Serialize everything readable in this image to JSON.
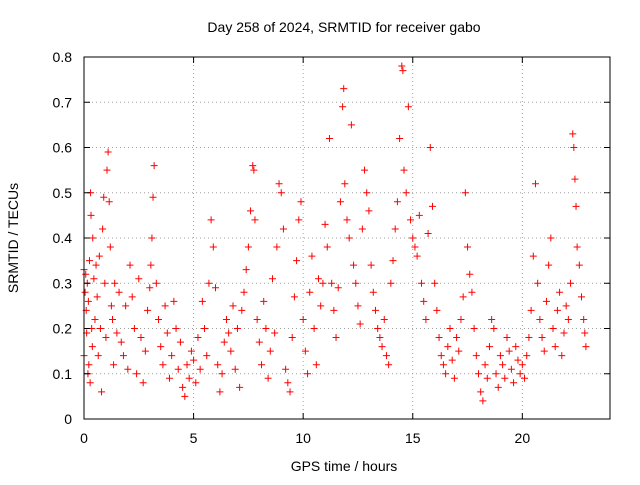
{
  "chart_data": {
    "type": "scatter",
    "title": "Day 258 of 2024, SRMTID for receiver gabo",
    "xlabel": "GPS time / hours",
    "ylabel": "SRMTID / TECUs",
    "xlim": [
      0,
      24
    ],
    "ylim": [
      0,
      0.8
    ],
    "grid": true,
    "marker": "plus",
    "color": "#ff0000",
    "xticks": [
      0,
      5,
      10,
      15,
      20
    ],
    "yticks": [
      0,
      0.1,
      0.2,
      0.3,
      0.4,
      0.5,
      0.6,
      0.7,
      0.8
    ],
    "xtick_labels": [
      "0",
      "5",
      "10",
      "15",
      "20"
    ],
    "ytick_labels": [
      "0",
      "0.1",
      "0.2",
      "0.3",
      "0.4",
      "0.5",
      "0.6",
      "0.7",
      "0.8"
    ],
    "series": [
      {
        "name": "SRMTID",
        "points": [
          [
            0.0,
            0.33
          ],
          [
            0.0,
            0.14
          ],
          [
            0.05,
            0.28
          ],
          [
            0.08,
            0.32
          ],
          [
            0.1,
            0.24
          ],
          [
            0.12,
            0.19
          ],
          [
            0.15,
            0.3
          ],
          [
            0.18,
            0.1
          ],
          [
            0.2,
            0.26
          ],
          [
            0.22,
            0.12
          ],
          [
            0.25,
            0.35
          ],
          [
            0.28,
            0.08
          ],
          [
            0.3,
            0.5
          ],
          [
            0.32,
            0.45
          ],
          [
            0.35,
            0.2
          ],
          [
            0.38,
            0.16
          ],
          [
            0.4,
            0.4
          ],
          [
            0.45,
            0.31
          ],
          [
            0.5,
            0.22
          ],
          [
            0.55,
            0.34
          ],
          [
            0.6,
            0.27
          ],
          [
            0.65,
            0.14
          ],
          [
            0.7,
            0.36
          ],
          [
            0.75,
            0.2
          ],
          [
            0.8,
            0.06
          ],
          [
            0.85,
            0.42
          ],
          [
            0.9,
            0.49
          ],
          [
            0.95,
            0.3
          ],
          [
            1.0,
            0.18
          ],
          [
            1.05,
            0.55
          ],
          [
            1.1,
            0.59
          ],
          [
            1.15,
            0.48
          ],
          [
            1.2,
            0.38
          ],
          [
            1.25,
            0.25
          ],
          [
            1.3,
            0.22
          ],
          [
            1.35,
            0.12
          ],
          [
            1.4,
            0.3
          ],
          [
            1.5,
            0.19
          ],
          [
            1.6,
            0.28
          ],
          [
            1.7,
            0.17
          ],
          [
            1.8,
            0.14
          ],
          [
            1.9,
            0.25
          ],
          [
            2.0,
            0.11
          ],
          [
            2.1,
            0.34
          ],
          [
            2.2,
            0.27
          ],
          [
            2.3,
            0.2
          ],
          [
            2.4,
            0.1
          ],
          [
            2.5,
            0.31
          ],
          [
            2.6,
            0.18
          ],
          [
            2.7,
            0.08
          ],
          [
            2.8,
            0.15
          ],
          [
            2.9,
            0.24
          ],
          [
            3.0,
            0.29
          ],
          [
            3.05,
            0.34
          ],
          [
            3.1,
            0.4
          ],
          [
            3.15,
            0.49
          ],
          [
            3.2,
            0.56
          ],
          [
            3.3,
            0.3
          ],
          [
            3.4,
            0.22
          ],
          [
            3.5,
            0.16
          ],
          [
            3.6,
            0.12
          ],
          [
            3.7,
            0.25
          ],
          [
            3.8,
            0.19
          ],
          [
            3.9,
            0.09
          ],
          [
            4.0,
            0.14
          ],
          [
            4.1,
            0.26
          ],
          [
            4.2,
            0.2
          ],
          [
            4.3,
            0.11
          ],
          [
            4.4,
            0.17
          ],
          [
            4.5,
            0.07
          ],
          [
            4.6,
            0.05
          ],
          [
            4.7,
            0.12
          ],
          [
            4.8,
            0.09
          ],
          [
            4.9,
            0.15
          ],
          [
            5.0,
            0.13
          ],
          [
            5.1,
            0.08
          ],
          [
            5.2,
            0.18
          ],
          [
            5.3,
            0.11
          ],
          [
            5.4,
            0.26
          ],
          [
            5.5,
            0.2
          ],
          [
            5.6,
            0.14
          ],
          [
            5.7,
            0.3
          ],
          [
            5.8,
            0.44
          ],
          [
            5.9,
            0.38
          ],
          [
            6.0,
            0.29
          ],
          [
            6.1,
            0.12
          ],
          [
            6.2,
            0.06
          ],
          [
            6.3,
            0.1
          ],
          [
            6.4,
            0.17
          ],
          [
            6.5,
            0.22
          ],
          [
            6.6,
            0.19
          ],
          [
            6.7,
            0.15
          ],
          [
            6.8,
            0.25
          ],
          [
            6.9,
            0.11
          ],
          [
            7.0,
            0.2
          ],
          [
            7.1,
            0.07
          ],
          [
            7.2,
            0.24
          ],
          [
            7.3,
            0.28
          ],
          [
            7.4,
            0.33
          ],
          [
            7.5,
            0.38
          ],
          [
            7.6,
            0.46
          ],
          [
            7.7,
            0.56
          ],
          [
            7.75,
            0.55
          ],
          [
            7.8,
            0.44
          ],
          [
            7.9,
            0.22
          ],
          [
            8.0,
            0.17
          ],
          [
            8.1,
            0.12
          ],
          [
            8.2,
            0.26
          ],
          [
            8.3,
            0.2
          ],
          [
            8.4,
            0.09
          ],
          [
            8.5,
            0.15
          ],
          [
            8.6,
            0.31
          ],
          [
            8.7,
            0.19
          ],
          [
            8.8,
            0.38
          ],
          [
            8.9,
            0.52
          ],
          [
            9.0,
            0.5
          ],
          [
            9.1,
            0.42
          ],
          [
            9.2,
            0.11
          ],
          [
            9.3,
            0.08
          ],
          [
            9.4,
            0.06
          ],
          [
            9.5,
            0.18
          ],
          [
            9.6,
            0.27
          ],
          [
            9.7,
            0.35
          ],
          [
            9.8,
            0.44
          ],
          [
            9.9,
            0.48
          ],
          [
            10.0,
            0.22
          ],
          [
            10.1,
            0.15
          ],
          [
            10.2,
            0.1
          ],
          [
            10.3,
            0.28
          ],
          [
            10.4,
            0.36
          ],
          [
            10.5,
            0.2
          ],
          [
            10.6,
            0.12
          ],
          [
            10.7,
            0.31
          ],
          [
            10.8,
            0.25
          ],
          [
            10.9,
            0.3
          ],
          [
            11.0,
            0.43
          ],
          [
            11.1,
            0.38
          ],
          [
            11.2,
            0.62
          ],
          [
            11.3,
            0.3
          ],
          [
            11.4,
            0.24
          ],
          [
            11.5,
            0.18
          ],
          [
            11.6,
            0.29
          ],
          [
            11.7,
            0.48
          ],
          [
            11.8,
            0.69
          ],
          [
            11.85,
            0.73
          ],
          [
            11.9,
            0.52
          ],
          [
            12.0,
            0.44
          ],
          [
            12.1,
            0.4
          ],
          [
            12.2,
            0.65
          ],
          [
            12.3,
            0.34
          ],
          [
            12.4,
            0.3
          ],
          [
            12.5,
            0.25
          ],
          [
            12.6,
            0.21
          ],
          [
            12.7,
            0.42
          ],
          [
            12.8,
            0.55
          ],
          [
            12.9,
            0.5
          ],
          [
            13.0,
            0.46
          ],
          [
            13.1,
            0.34
          ],
          [
            13.2,
            0.28
          ],
          [
            13.3,
            0.24
          ],
          [
            13.4,
            0.2
          ],
          [
            13.5,
            0.18
          ],
          [
            13.6,
            0.16
          ],
          [
            13.7,
            0.22
          ],
          [
            13.8,
            0.14
          ],
          [
            13.9,
            0.12
          ],
          [
            14.0,
            0.3
          ],
          [
            14.1,
            0.35
          ],
          [
            14.2,
            0.42
          ],
          [
            14.3,
            0.48
          ],
          [
            14.4,
            0.62
          ],
          [
            14.5,
            0.78
          ],
          [
            14.55,
            0.77
          ],
          [
            14.6,
            0.55
          ],
          [
            14.7,
            0.5
          ],
          [
            14.8,
            0.69
          ],
          [
            14.9,
            0.44
          ],
          [
            15.0,
            0.4
          ],
          [
            15.1,
            0.38
          ],
          [
            15.2,
            0.36
          ],
          [
            15.3,
            0.45
          ],
          [
            15.4,
            0.3
          ],
          [
            15.5,
            0.26
          ],
          [
            15.6,
            0.22
          ],
          [
            15.7,
            0.41
          ],
          [
            15.8,
            0.6
          ],
          [
            15.9,
            0.47
          ],
          [
            16.0,
            0.3
          ],
          [
            16.1,
            0.24
          ],
          [
            16.2,
            0.18
          ],
          [
            16.3,
            0.14
          ],
          [
            16.4,
            0.12
          ],
          [
            16.5,
            0.1
          ],
          [
            16.6,
            0.16
          ],
          [
            16.7,
            0.2
          ],
          [
            16.8,
            0.13
          ],
          [
            16.9,
            0.09
          ],
          [
            17.0,
            0.18
          ],
          [
            17.1,
            0.15
          ],
          [
            17.2,
            0.22
          ],
          [
            17.3,
            0.27
          ],
          [
            17.4,
            0.5
          ],
          [
            17.5,
            0.38
          ],
          [
            17.6,
            0.32
          ],
          [
            17.7,
            0.28
          ],
          [
            17.8,
            0.2
          ],
          [
            17.9,
            0.14
          ],
          [
            18.0,
            0.1
          ],
          [
            18.1,
            0.06
          ],
          [
            18.2,
            0.04
          ],
          [
            18.3,
            0.12
          ],
          [
            18.4,
            0.09
          ],
          [
            18.5,
            0.16
          ],
          [
            18.6,
            0.22
          ],
          [
            18.7,
            0.2
          ],
          [
            18.8,
            0.1
          ],
          [
            18.9,
            0.07
          ],
          [
            19.0,
            0.14
          ],
          [
            19.1,
            0.12
          ],
          [
            19.2,
            0.09
          ],
          [
            19.3,
            0.18
          ],
          [
            19.4,
            0.15
          ],
          [
            19.5,
            0.11
          ],
          [
            19.6,
            0.08
          ],
          [
            19.7,
            0.16
          ],
          [
            19.8,
            0.13
          ],
          [
            19.9,
            0.1
          ],
          [
            20.0,
            0.12
          ],
          [
            20.1,
            0.09
          ],
          [
            20.2,
            0.14
          ],
          [
            20.3,
            0.18
          ],
          [
            20.4,
            0.24
          ],
          [
            20.5,
            0.36
          ],
          [
            20.6,
            0.52
          ],
          [
            20.7,
            0.3
          ],
          [
            20.8,
            0.22
          ],
          [
            20.9,
            0.18
          ],
          [
            21.0,
            0.15
          ],
          [
            21.1,
            0.26
          ],
          [
            21.2,
            0.34
          ],
          [
            21.3,
            0.4
          ],
          [
            21.4,
            0.2
          ],
          [
            21.5,
            0.16
          ],
          [
            21.6,
            0.24
          ],
          [
            21.7,
            0.28
          ],
          [
            21.8,
            0.14
          ],
          [
            21.9,
            0.19
          ],
          [
            22.0,
            0.25
          ],
          [
            22.1,
            0.22
          ],
          [
            22.2,
            0.3
          ],
          [
            22.3,
            0.63
          ],
          [
            22.35,
            0.6
          ],
          [
            22.4,
            0.53
          ],
          [
            22.45,
            0.47
          ],
          [
            22.5,
            0.38
          ],
          [
            22.6,
            0.34
          ],
          [
            22.7,
            0.27
          ],
          [
            22.8,
            0.22
          ],
          [
            22.85,
            0.19
          ],
          [
            22.9,
            0.16
          ]
        ]
      }
    ]
  }
}
